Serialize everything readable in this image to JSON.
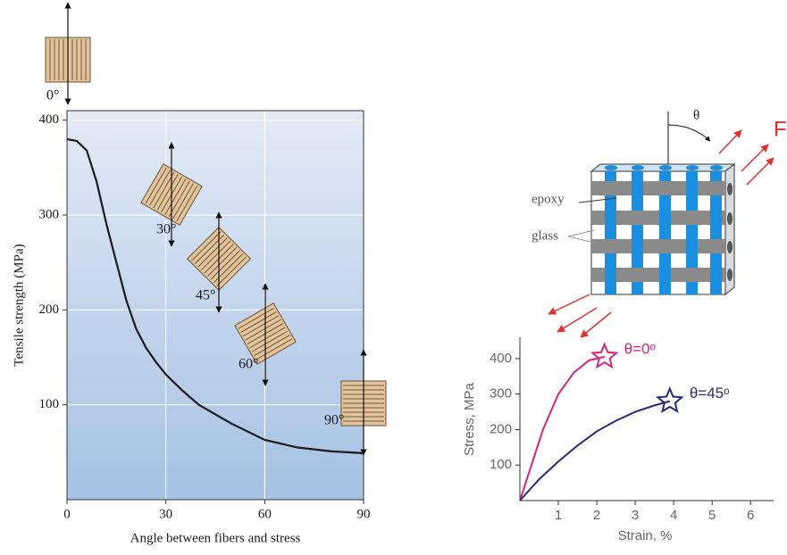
{
  "chart_data": [
    {
      "type": "line",
      "x_label": "Angle between fibers and stress",
      "y_label": "Tensile strength (MPa)",
      "x": [
        0,
        3,
        6,
        9,
        12,
        15,
        18,
        21,
        24,
        27,
        30,
        35,
        40,
        45,
        50,
        60,
        70,
        80,
        90
      ],
      "values": [
        380,
        378,
        368,
        335,
        290,
        250,
        210,
        180,
        160,
        145,
        132,
        115,
        100,
        90,
        80,
        63,
        55,
        51,
        49
      ],
      "color": "#1a1a1a",
      "xlim": [
        0,
        90
      ],
      "ylim": [
        0,
        410
      ],
      "xticks": [
        0,
        30,
        60,
        90
      ],
      "yticks": [
        100,
        200,
        300,
        400
      ],
      "grid": true,
      "annotations": [
        "0°",
        "30°",
        "45°",
        "60°",
        "90°"
      ]
    },
    {
      "type": "line",
      "x_label": "Strain, %",
      "y_label": "Stress, MPa",
      "series": [
        {
          "name": "θ=0ᵒ",
          "color": "#d6247f",
          "x": [
            0,
            0.3,
            0.6,
            1,
            1.4,
            1.8,
            2.2
          ],
          "values": [
            0,
            100,
            200,
            300,
            360,
            395,
            405
          ]
        },
        {
          "name": "θ=45ᵒ",
          "color": "#2a2a78",
          "x": [
            0,
            0.5,
            1,
            1.5,
            2,
            2.5,
            3,
            3.5,
            3.9
          ],
          "values": [
            0,
            60,
            110,
            155,
            195,
            225,
            250,
            268,
            280
          ]
        }
      ],
      "xlim": [
        0,
        6.6
      ],
      "ylim": [
        0,
        460
      ],
      "xticks": [
        1,
        2,
        3,
        4,
        5,
        6
      ],
      "yticks": [
        100,
        200,
        300,
        400
      ],
      "grid": false
    }
  ],
  "diagram": {
    "labels": [
      "epoxy",
      "glass",
      "θ",
      "F"
    ]
  }
}
